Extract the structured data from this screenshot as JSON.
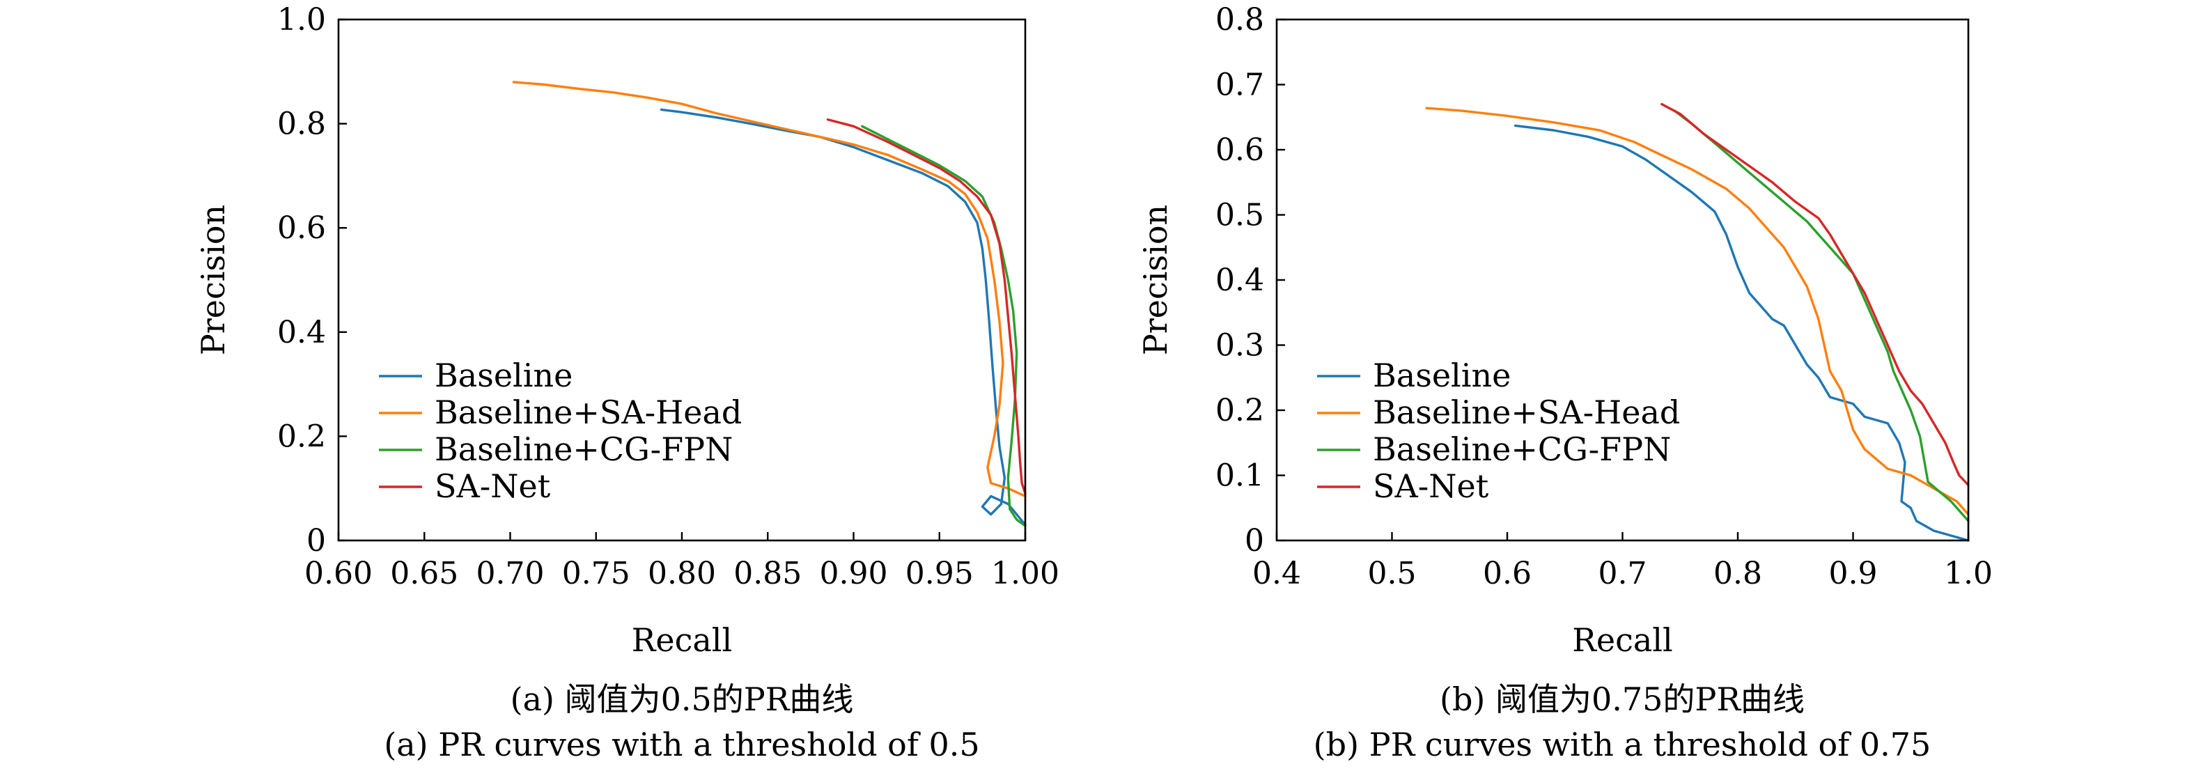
{
  "chart_data": [
    {
      "type": "line",
      "xlabel": "Recall",
      "ylabel": "Precision",
      "xlim": [
        0.6,
        1.0
      ],
      "ylim": [
        0,
        1.0
      ],
      "xticks": [
        "0.60",
        "0.65",
        "0.70",
        "0.75",
        "0.80",
        "0.85",
        "0.90",
        "0.95",
        "1.00"
      ],
      "yticks": [
        "0",
        "0.2",
        "0.4",
        "0.6",
        "0.8",
        "1.0"
      ],
      "grid": false,
      "legend": "bottom-left",
      "caption_cn": "(a) 阈值为0.5的PR曲线",
      "caption_en": "(a) PR curves with a threshold of 0.5",
      "series": [
        {
          "name": "Baseline",
          "color": "#1f77b4",
          "points": [
            [
              0.788,
              0.827
            ],
            [
              0.8,
              0.822
            ],
            [
              0.82,
              0.812
            ],
            [
              0.84,
              0.8
            ],
            [
              0.86,
              0.787
            ],
            [
              0.88,
              0.775
            ],
            [
              0.9,
              0.755
            ],
            [
              0.92,
              0.73
            ],
            [
              0.94,
              0.705
            ],
            [
              0.955,
              0.68
            ],
            [
              0.965,
              0.65
            ],
            [
              0.972,
              0.61
            ],
            [
              0.975,
              0.56
            ],
            [
              0.977,
              0.5
            ],
            [
              0.979,
              0.42
            ],
            [
              0.981,
              0.33
            ],
            [
              0.983,
              0.25
            ],
            [
              0.985,
              0.18
            ],
            [
              0.988,
              0.12
            ],
            [
              0.986,
              0.07
            ],
            [
              0.98,
              0.05
            ],
            [
              0.975,
              0.065
            ],
            [
              0.98,
              0.085
            ],
            [
              0.99,
              0.07
            ],
            [
              1.0,
              0.03
            ]
          ]
        },
        {
          "name": "Baseline+SA-Head",
          "color": "#ff7f0e",
          "points": [
            [
              0.702,
              0.88
            ],
            [
              0.72,
              0.875
            ],
            [
              0.74,
              0.867
            ],
            [
              0.76,
              0.86
            ],
            [
              0.78,
              0.85
            ],
            [
              0.8,
              0.838
            ],
            [
              0.82,
              0.82
            ],
            [
              0.84,
              0.805
            ],
            [
              0.86,
              0.79
            ],
            [
              0.88,
              0.775
            ],
            [
              0.9,
              0.76
            ],
            [
              0.92,
              0.74
            ],
            [
              0.94,
              0.712
            ],
            [
              0.955,
              0.69
            ],
            [
              0.965,
              0.665
            ],
            [
              0.972,
              0.63
            ],
            [
              0.978,
              0.58
            ],
            [
              0.982,
              0.5
            ],
            [
              0.985,
              0.42
            ],
            [
              0.987,
              0.34
            ],
            [
              0.985,
              0.26
            ],
            [
              0.982,
              0.2
            ],
            [
              0.978,
              0.14
            ],
            [
              0.98,
              0.11
            ],
            [
              0.99,
              0.1
            ],
            [
              1.0,
              0.085
            ]
          ]
        },
        {
          "name": "Baseline+CG-FPN",
          "color": "#2ca02c",
          "points": [
            [
              0.905,
              0.795
            ],
            [
              0.92,
              0.77
            ],
            [
              0.935,
              0.745
            ],
            [
              0.95,
              0.72
            ],
            [
              0.965,
              0.69
            ],
            [
              0.975,
              0.66
            ],
            [
              0.982,
              0.61
            ],
            [
              0.986,
              0.56
            ],
            [
              0.99,
              0.5
            ],
            [
              0.993,
              0.44
            ],
            [
              0.995,
              0.36
            ],
            [
              0.994,
              0.27
            ],
            [
              0.992,
              0.19
            ],
            [
              0.99,
              0.12
            ],
            [
              0.991,
              0.06
            ],
            [
              0.995,
              0.04
            ],
            [
              1.0,
              0.028
            ]
          ]
        },
        {
          "name": "SA-Net",
          "color": "#d62728",
          "points": [
            [
              0.885,
              0.808
            ],
            [
              0.9,
              0.795
            ],
            [
              0.92,
              0.765
            ],
            [
              0.935,
              0.74
            ],
            [
              0.95,
              0.715
            ],
            [
              0.962,
              0.69
            ],
            [
              0.972,
              0.66
            ],
            [
              0.98,
              0.625
            ],
            [
              0.985,
              0.57
            ],
            [
              0.988,
              0.5
            ],
            [
              0.99,
              0.43
            ],
            [
              0.992,
              0.36
            ],
            [
              0.994,
              0.28
            ],
            [
              0.996,
              0.2
            ],
            [
              0.997,
              0.15
            ],
            [
              0.998,
              0.11
            ],
            [
              1.0,
              0.09
            ]
          ]
        }
      ]
    },
    {
      "type": "line",
      "xlabel": "Recall",
      "ylabel": "Precision",
      "xlim": [
        0.4,
        1.0
      ],
      "ylim": [
        0,
        0.8
      ],
      "xticks": [
        "0.4",
        "0.5",
        "0.6",
        "0.7",
        "0.8",
        "0.9",
        "1.0"
      ],
      "yticks": [
        "0",
        "0.1",
        "0.2",
        "0.3",
        "0.4",
        "0.5",
        "0.6",
        "0.7",
        "0.8"
      ],
      "grid": false,
      "legend": "bottom-left",
      "caption_cn": "(b) 阈值为0.75的PR曲线",
      "caption_en": "(b) PR curves with a threshold of 0.75",
      "series": [
        {
          "name": "Baseline",
          "color": "#1f77b4",
          "points": [
            [
              0.607,
              0.637
            ],
            [
              0.64,
              0.63
            ],
            [
              0.67,
              0.62
            ],
            [
              0.7,
              0.605
            ],
            [
              0.72,
              0.585
            ],
            [
              0.74,
              0.56
            ],
            [
              0.76,
              0.535
            ],
            [
              0.78,
              0.505
            ],
            [
              0.79,
              0.47
            ],
            [
              0.8,
              0.42
            ],
            [
              0.81,
              0.38
            ],
            [
              0.82,
              0.36
            ],
            [
              0.83,
              0.34
            ],
            [
              0.84,
              0.33
            ],
            [
              0.85,
              0.3
            ],
            [
              0.86,
              0.27
            ],
            [
              0.87,
              0.25
            ],
            [
              0.88,
              0.22
            ],
            [
              0.9,
              0.21
            ],
            [
              0.91,
              0.19
            ],
            [
              0.93,
              0.18
            ],
            [
              0.94,
              0.15
            ],
            [
              0.945,
              0.12
            ],
            [
              0.942,
              0.06
            ],
            [
              0.95,
              0.05
            ],
            [
              0.955,
              0.03
            ],
            [
              0.97,
              0.015
            ],
            [
              1.0,
              0.0
            ]
          ]
        },
        {
          "name": "Baseline+SA-Head",
          "color": "#ff7f0e",
          "points": [
            [
              0.53,
              0.664
            ],
            [
              0.56,
              0.66
            ],
            [
              0.6,
              0.652
            ],
            [
              0.64,
              0.642
            ],
            [
              0.68,
              0.63
            ],
            [
              0.71,
              0.612
            ],
            [
              0.73,
              0.595
            ],
            [
              0.76,
              0.57
            ],
            [
              0.79,
              0.54
            ],
            [
              0.81,
              0.51
            ],
            [
              0.83,
              0.47
            ],
            [
              0.84,
              0.45
            ],
            [
              0.85,
              0.42
            ],
            [
              0.86,
              0.39
            ],
            [
              0.87,
              0.34
            ],
            [
              0.875,
              0.3
            ],
            [
              0.88,
              0.26
            ],
            [
              0.89,
              0.23
            ],
            [
              0.895,
              0.2
            ],
            [
              0.9,
              0.17
            ],
            [
              0.91,
              0.14
            ],
            [
              0.93,
              0.11
            ],
            [
              0.95,
              0.1
            ],
            [
              0.97,
              0.08
            ],
            [
              0.99,
              0.06
            ],
            [
              1.0,
              0.04
            ]
          ]
        },
        {
          "name": "Baseline+CG-FPN",
          "color": "#2ca02c",
          "points": [
            [
              0.745,
              0.66
            ],
            [
              0.76,
              0.64
            ],
            [
              0.78,
              0.61
            ],
            [
              0.8,
              0.58
            ],
            [
              0.82,
              0.55
            ],
            [
              0.84,
              0.52
            ],
            [
              0.86,
              0.49
            ],
            [
              0.87,
              0.47
            ],
            [
              0.88,
              0.45
            ],
            [
              0.89,
              0.43
            ],
            [
              0.9,
              0.41
            ],
            [
              0.91,
              0.37
            ],
            [
              0.92,
              0.33
            ],
            [
              0.93,
              0.29
            ],
            [
              0.935,
              0.26
            ],
            [
              0.94,
              0.24
            ],
            [
              0.95,
              0.2
            ],
            [
              0.958,
              0.16
            ],
            [
              0.962,
              0.12
            ],
            [
              0.965,
              0.09
            ],
            [
              0.975,
              0.075
            ],
            [
              0.985,
              0.06
            ],
            [
              1.0,
              0.03
            ]
          ]
        },
        {
          "name": "SA-Net",
          "color": "#d62728",
          "points": [
            [
              0.734,
              0.67
            ],
            [
              0.75,
              0.655
            ],
            [
              0.77,
              0.625
            ],
            [
              0.79,
              0.6
            ],
            [
              0.81,
              0.575
            ],
            [
              0.83,
              0.55
            ],
            [
              0.85,
              0.52
            ],
            [
              0.87,
              0.495
            ],
            [
              0.88,
              0.47
            ],
            [
              0.89,
              0.44
            ],
            [
              0.9,
              0.41
            ],
            [
              0.91,
              0.38
            ],
            [
              0.92,
              0.34
            ],
            [
              0.93,
              0.3
            ],
            [
              0.94,
              0.26
            ],
            [
              0.95,
              0.23
            ],
            [
              0.96,
              0.21
            ],
            [
              0.97,
              0.18
            ],
            [
              0.98,
              0.15
            ],
            [
              0.987,
              0.12
            ],
            [
              0.992,
              0.1
            ],
            [
              1.0,
              0.085
            ]
          ]
        }
      ]
    }
  ]
}
